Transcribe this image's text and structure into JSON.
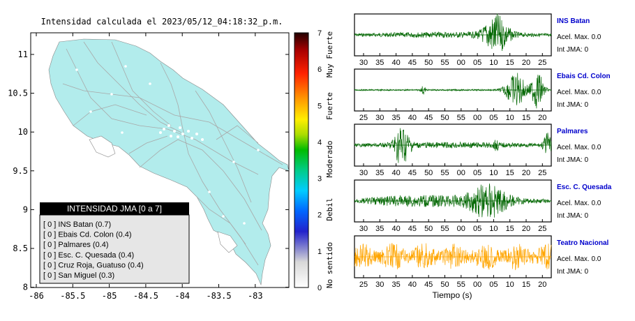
{
  "header": {
    "title": "Intensidad calculada el 2023/05/12_04:18:32_p.m."
  },
  "map": {
    "x_ticks": [
      "-86",
      "-85.5",
      "-85",
      "-84.5",
      "-84",
      "-83.5",
      "-83"
    ],
    "y_ticks": [
      "11",
      "10.5",
      "10",
      "9.5",
      "9",
      "8.5",
      "8"
    ],
    "land_color": "#b2ecec",
    "road_color": "#aaaaaa",
    "legend": {
      "title": "INTENSIDAD JMA [0 a 7]",
      "items": [
        "[ 0 ] INS Batan (0.7)",
        "[ 0 ] Ebais Cd. Colon (0.4)",
        "[ 0 ] Palmares (0.4)",
        "[ 0 ] Esc. C. Quesada (0.4)",
        "[ 0 ] Cruz Roja, Guatuso (0.4)",
        "[ 0 ] San Miguel (0.3)"
      ]
    }
  },
  "colorbar": {
    "ticks": [
      "0",
      "1",
      "2",
      "3",
      "4",
      "5",
      "6",
      "7"
    ],
    "categories": [
      "No sentido",
      "Debil",
      "Moderado",
      "Fuerte",
      "Muy Fuerte"
    ]
  },
  "waveforms": {
    "xlabel": "Tiempo (s)",
    "panels": [
      {
        "station": "INS Batan",
        "acel": "Acel. Max. 0.0",
        "intensity": "Int JMA: 0",
        "color": "#006600",
        "ticks": [
          "30",
          "35",
          "40",
          "45",
          "50",
          "55",
          "00",
          "05",
          "10",
          "15",
          "20",
          "25"
        ]
      },
      {
        "station": "Ebais Cd. Colon",
        "acel": "Acel. Max. 0.0",
        "intensity": "Int JMA: 0",
        "color": "#006600",
        "ticks": [
          "25",
          "30",
          "35",
          "40",
          "45",
          "50",
          "55",
          "00",
          "05",
          "10",
          "15",
          "20"
        ]
      },
      {
        "station": "Palmares",
        "acel": "Acel. Max. 0.0",
        "intensity": "Int JMA: 0",
        "color": "#006600",
        "ticks": [
          "30",
          "35",
          "40",
          "45",
          "50",
          "55",
          "00",
          "05",
          "10",
          "15",
          "20",
          "25"
        ]
      },
      {
        "station": "Esc. C. Quesada",
        "acel": "Acel. Max. 0.0",
        "intensity": "Int JMA: 0",
        "color": "#006600",
        "ticks": [
          "30",
          "35",
          "40",
          "45",
          "50",
          "55",
          "00",
          "05",
          "10",
          "15",
          "20",
          "25"
        ]
      },
      {
        "station": "Teatro Nacional",
        "acel": "Acel. Max. 0.0",
        "intensity": "Int JMA: 0",
        "color": "#ffa500",
        "ticks": [
          "25",
          "30",
          "35",
          "40",
          "45",
          "50",
          "55",
          "00",
          "05",
          "10",
          "15",
          "20"
        ]
      }
    ]
  },
  "chart_data": {
    "type": "heatmap",
    "xlim": [
      -86,
      -82.6
    ],
    "ylim": [
      8,
      11.3
    ],
    "colorbar_range": [
      0,
      7
    ],
    "stations": [
      {
        "name": "INS Batan",
        "intensity": 0.7
      },
      {
        "name": "Ebais Cd. Colon",
        "intensity": 0.4
      },
      {
        "name": "Palmares",
        "intensity": 0.4
      },
      {
        "name": "Esc. C. Quesada",
        "intensity": 0.4
      },
      {
        "name": "Cruz Roja, Guatuso",
        "intensity": 0.4
      },
      {
        "name": "San Miguel",
        "intensity": 0.3
      }
    ]
  }
}
